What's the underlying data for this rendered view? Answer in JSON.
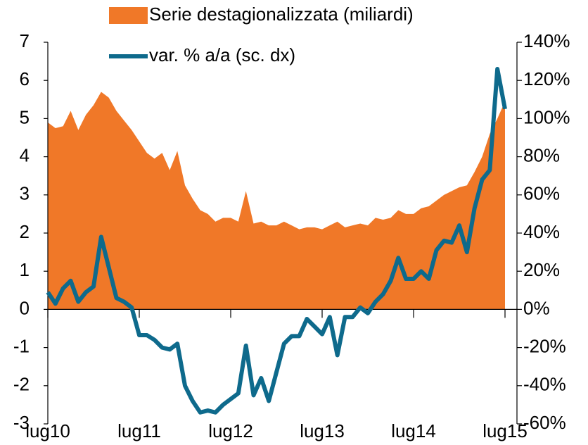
{
  "chart_data": {
    "type": "area_line",
    "categories": [
      "lug10",
      null,
      null,
      null,
      null,
      null,
      null,
      null,
      null,
      null,
      null,
      null,
      "lug11",
      null,
      null,
      null,
      null,
      null,
      null,
      null,
      null,
      null,
      null,
      null,
      "lug12",
      null,
      null,
      null,
      null,
      null,
      null,
      null,
      null,
      null,
      null,
      null,
      "lug13",
      null,
      null,
      null,
      null,
      null,
      null,
      null,
      null,
      null,
      null,
      null,
      "lug14",
      null,
      null,
      null,
      null,
      null,
      null,
      null,
      null,
      null,
      null,
      null,
      "lug15"
    ],
    "series": [
      {
        "name": "Serie destagionalizzata (miliardi)",
        "color": "#f07828",
        "kind": "area",
        "values": [
          4.9,
          4.75,
          4.8,
          5.2,
          4.7,
          5.1,
          5.35,
          5.7,
          5.55,
          5.2,
          4.95,
          4.7,
          4.4,
          4.1,
          3.95,
          4.1,
          3.65,
          4.15,
          3.25,
          2.9,
          2.6,
          2.5,
          2.3,
          2.4,
          2.4,
          2.3,
          3.1,
          2.25,
          2.3,
          2.2,
          2.2,
          2.3,
          2.2,
          2.1,
          2.15,
          2.15,
          2.1,
          2.2,
          2.3,
          2.15,
          2.2,
          2.25,
          2.2,
          2.4,
          2.35,
          2.4,
          2.6,
          2.5,
          2.5,
          2.65,
          2.7,
          2.85,
          3.0,
          3.1,
          3.2,
          3.25,
          3.6,
          4.0,
          4.6,
          5.0,
          5.45
        ]
      },
      {
        "name": "var. % a/a (sc. dx)",
        "color": "#0e6a8c",
        "kind": "line",
        "axis": "y2",
        "values": [
          9,
          3,
          11,
          15,
          4,
          9,
          12,
          38,
          22,
          6,
          4,
          1,
          -13.5,
          -13.5,
          -16,
          -20,
          -21,
          -18,
          -40,
          -48,
          -54,
          -53,
          -54,
          -50,
          -47,
          -44,
          -19,
          -45,
          -36,
          -48,
          -33,
          -18,
          -14,
          -14,
          -5,
          -9,
          -13,
          -4,
          -24,
          -4,
          -4,
          1,
          -2,
          4,
          8,
          15,
          27,
          16,
          16,
          20,
          16,
          31,
          36,
          35,
          44,
          30,
          53,
          68,
          73,
          126,
          105
        ]
      }
    ],
    "ylim": [
      -3,
      7
    ],
    "yticks": [
      -3,
      -2,
      -1,
      0,
      1,
      2,
      3,
      4,
      5,
      6,
      7
    ],
    "y2lim": [
      -60,
      140
    ],
    "y2ticks": [
      {
        "value": -60,
        "label": "-60%"
      },
      {
        "value": -40,
        "label": "-40%"
      },
      {
        "value": -20,
        "label": "-20%"
      },
      {
        "value": 0,
        "label": "0%"
      },
      {
        "value": 20,
        "label": "20%"
      },
      {
        "value": 40,
        "label": "40%"
      },
      {
        "value": 60,
        "label": "60%"
      },
      {
        "value": 80,
        "label": "80%"
      },
      {
        "value": 100,
        "label": "100%"
      },
      {
        "value": 120,
        "label": "120%"
      },
      {
        "value": 140,
        "label": "140%"
      }
    ],
    "legend": "top"
  }
}
